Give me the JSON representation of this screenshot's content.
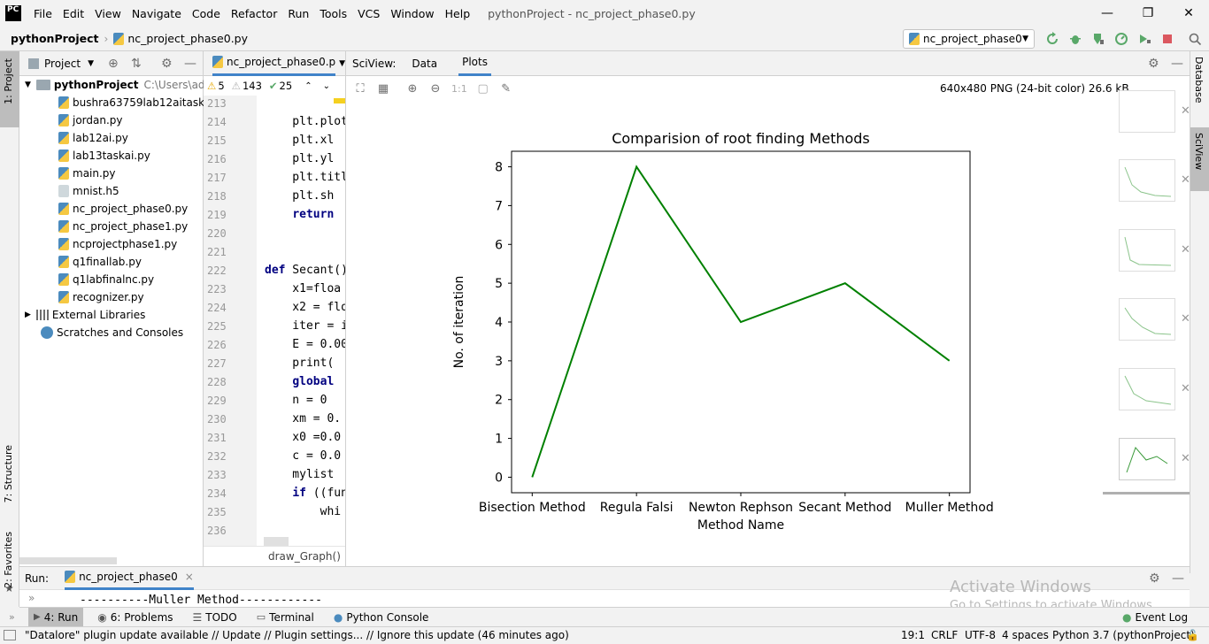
{
  "menu": {
    "logo": "PC",
    "items": [
      "File",
      "Edit",
      "View",
      "Navigate",
      "Code",
      "Refactor",
      "Run",
      "Tools",
      "VCS",
      "Window",
      "Help"
    ],
    "window_title": "pythonProject - nc_project_phase0.py"
  },
  "nav": {
    "project": "pythonProject",
    "file": "nc_project_phase0.py",
    "run_config": "nc_project_phase0"
  },
  "left_strip": {
    "project_tab": "1: Project",
    "structure_tab": "7: Structure",
    "favorites_tab": "2: Favorites"
  },
  "right_strip": {
    "database_tab": "Database",
    "sciview_tab": "SciView"
  },
  "project_panel": {
    "title": "Project",
    "root": "pythonProject",
    "root_path": "C:\\Users\\admin",
    "files": [
      "bushra63759lab12aitask.py",
      "jordan.py",
      "lab12ai.py",
      "lab13taskai.py",
      "main.py",
      "mnist.h5",
      "nc_project_phase0.py",
      "nc_project_phase1.py",
      "ncprojectphase1.py",
      "q1finallab.py",
      "q1labfinalnc.py",
      "recognizer.py"
    ],
    "external": "External Libraries",
    "scratches": "Scratches and Consoles"
  },
  "editor": {
    "tab": "nc_project_phase0.p",
    "warnings": "5",
    "weak_warnings": "143",
    "ok": "25",
    "breadcrumb": "draw_Graph()",
    "lines": [
      {
        "n": "213",
        "t": ""
      },
      {
        "n": "214",
        "t": "    plt.plot"
      },
      {
        "n": "215",
        "t": "    plt.xl"
      },
      {
        "n": "216",
        "t": "    plt.yl"
      },
      {
        "n": "217",
        "t": "    plt.titl"
      },
      {
        "n": "218",
        "t": "    plt.sh"
      },
      {
        "n": "219",
        "t": "    return"
      },
      {
        "n": "220",
        "t": ""
      },
      {
        "n": "221",
        "t": ""
      },
      {
        "n": "222",
        "t": "def Secant()"
      },
      {
        "n": "223",
        "t": "    x1=floa"
      },
      {
        "n": "224",
        "t": "    x2 = flo"
      },
      {
        "n": "225",
        "t": "    iter = i"
      },
      {
        "n": "226",
        "t": "    E = 0.00"
      },
      {
        "n": "227",
        "t": "    print("
      },
      {
        "n": "228",
        "t": "    global"
      },
      {
        "n": "229",
        "t": "    n = 0"
      },
      {
        "n": "230",
        "t": "    xm = 0."
      },
      {
        "n": "231",
        "t": "    x0 =0.0"
      },
      {
        "n": "232",
        "t": "    c = 0.0"
      },
      {
        "n": "233",
        "t": "    mylist"
      },
      {
        "n": "234",
        "t": "    if ((fun"
      },
      {
        "n": "235",
        "t": "        whi"
      },
      {
        "n": "236",
        "t": ""
      }
    ]
  },
  "sciview": {
    "label": "SciView:",
    "tabs": [
      "Data",
      "Plots"
    ],
    "info": "640x480 PNG (24-bit color) 26.6 kB",
    "zoom_label": "1:1"
  },
  "chart_data": {
    "type": "line",
    "title": "Comparision of root finding Methods",
    "xlabel": "Method Name",
    "ylabel": "No. of iteration",
    "categories": [
      "Bisection Method",
      "Regula Falsi",
      "Newton Rephson",
      "Secant Method",
      "Muller Method"
    ],
    "values": [
      0,
      8,
      4,
      5,
      3
    ],
    "yticks": [
      "0",
      "1",
      "2",
      "3",
      "4",
      "5",
      "6",
      "7",
      "8"
    ],
    "ylim": [
      -0.4,
      8.4
    ],
    "color": "#008000",
    "grid": false
  },
  "run": {
    "label": "Run:",
    "tab": "nc_project_phase0",
    "output": "----------Muller Method------------",
    "watermark1": "Activate Windows",
    "watermark2": "Go to Settings to activate Windows."
  },
  "bottom_tabs": [
    "4: Run",
    "6: Problems",
    "TODO",
    "Terminal",
    "Python Console"
  ],
  "event_log": "Event Log",
  "status": {
    "message": "\"Datalore\" plugin update available // Update // Plugin settings... // Ignore this update (46 minutes ago)",
    "position": "19:1",
    "line_sep": "CRLF",
    "encoding": "UTF-8",
    "indent": "4 spaces",
    "interpreter": "Python 3.7 (pythonProject)"
  }
}
